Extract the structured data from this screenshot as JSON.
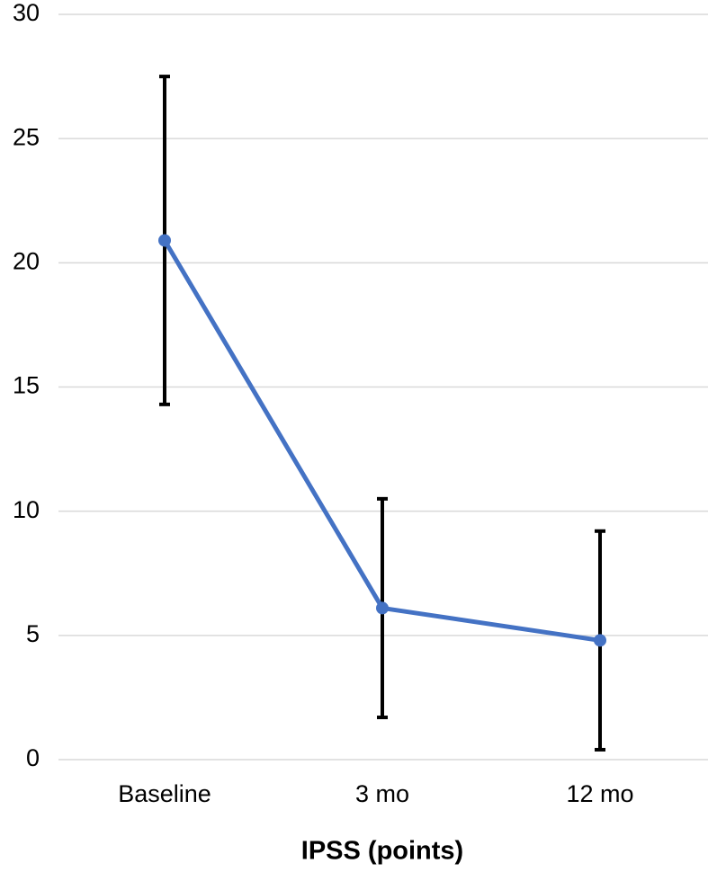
{
  "chart_data": {
    "type": "line",
    "x_label": "IPSS (points)",
    "categories": [
      "Baseline",
      "3 mo",
      "12 mo"
    ],
    "series": [
      {
        "color": "#4472c4",
        "values": [
          20.9,
          6.1,
          4.8
        ],
        "errors": [
          6.6,
          4.4,
          4.4
        ],
        "error_color": "#000000"
      }
    ],
    "ylim": [
      0,
      30
    ],
    "yticks": [
      0,
      5,
      10,
      15,
      20,
      25,
      30
    ],
    "grid": true
  }
}
